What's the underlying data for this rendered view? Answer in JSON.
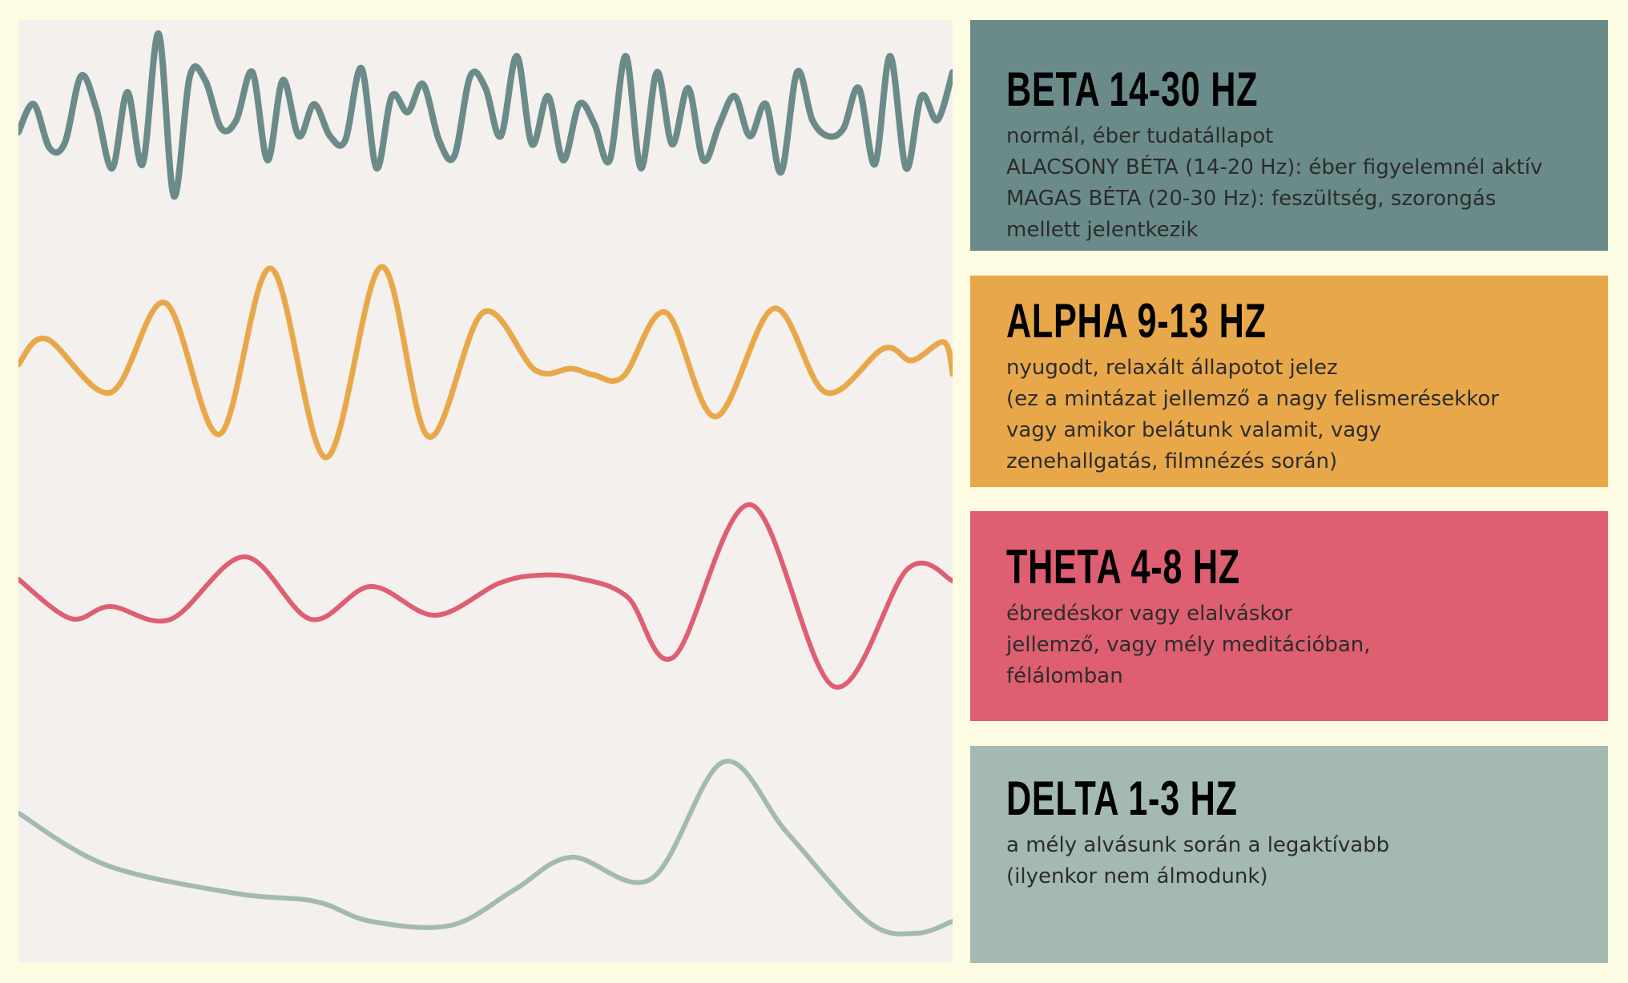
{
  "colors": {
    "page_background": "#fefbe3",
    "wave_panel_background": "#f3f0ee"
  },
  "bands": [
    {
      "id": "beta",
      "title": "BETA 14-30 HZ",
      "color": "#6b8b8a",
      "lines": [
        "normál, éber tudatállapot",
        "ALACSONY BÉTA (14-20 Hz): éber figyelemnél aktív",
        "MAGAS BÉTA (20-30 Hz): feszültség, szorongás",
        "mellett jelentkezik"
      ]
    },
    {
      "id": "alpha",
      "title": "ALPHA 9-13 HZ",
      "color": "#e8a84a",
      "lines": [
        "nyugodt, relaxált állapotot jelez",
        "(ez a mintázat jellemző a nagy felismerésekkor",
        "vagy amikor belátunk valamit, vagy",
        "zenehallgatás, filmnézés során)"
      ]
    },
    {
      "id": "theta",
      "title": "THETA 4-8 HZ",
      "color": "#de5f71",
      "lines": [
        "ébredéskor vagy elalváskor",
        "jellemző, vagy mély meditációban,",
        "félálomban"
      ]
    },
    {
      "id": "delta",
      "title": "DELTA 1-3 HZ",
      "color": "#a3b9b1",
      "lines": [
        "a mély alvásunk során a legaktívabb",
        "(ilyenkor nem álmodunk)"
      ]
    }
  ]
}
